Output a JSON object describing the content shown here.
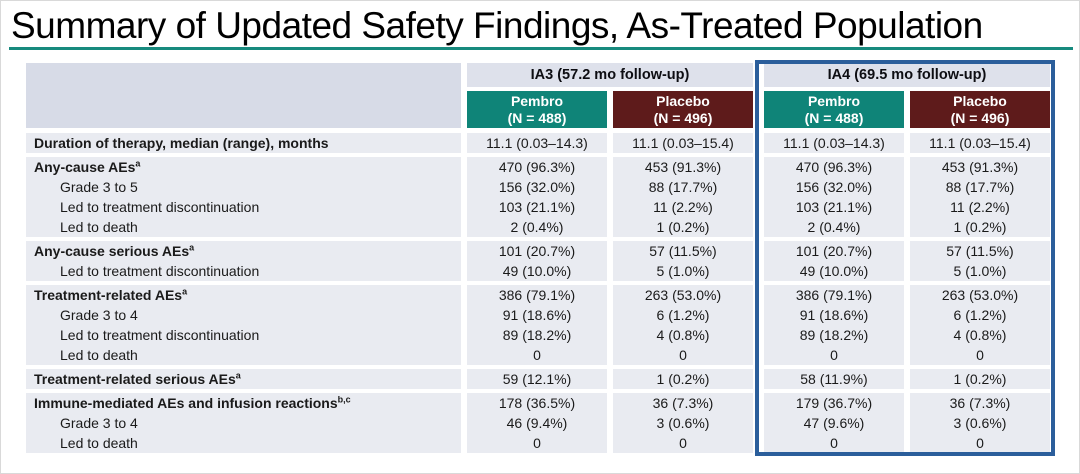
{
  "title": "Summary of Updated Safety Findings, As-Treated Population",
  "colors": {
    "teal": "#0f8478",
    "maroon": "#5e1b1b",
    "blue_border": "#2b5e9b",
    "accent_rule": "#178a7e",
    "group_header_bg": "#dee1eb",
    "label_header_bg": "#d7dbe7",
    "row_bg": "#e9ebf1"
  },
  "table": {
    "groups": [
      {
        "label": "IA3 (57.2 mo follow-up)",
        "highlighted": false
      },
      {
        "label": "IA4 (69.5 mo follow-up)",
        "highlighted": true
      }
    ],
    "columns": [
      {
        "arm": "Pembro",
        "n": "(N = 488)",
        "color": "teal"
      },
      {
        "arm": "Placebo",
        "n": "(N = 496)",
        "color": "maroon"
      },
      {
        "arm": "Pembro",
        "n": "(N = 488)",
        "color": "teal"
      },
      {
        "arm": "Placebo",
        "n": "(N = 496)",
        "color": "maroon"
      }
    ],
    "sections": [
      {
        "rows": [
          {
            "label": "Duration of therapy, median (range), months",
            "sup": "",
            "bold": true,
            "indent": false,
            "values": [
              "11.1 (0.03–14.3)",
              "11.1 (0.03–15.4)",
              "11.1 (0.03–14.3)",
              "11.1 (0.03–15.4)"
            ]
          }
        ]
      },
      {
        "rows": [
          {
            "label": "Any-cause AEs",
            "sup": "a",
            "bold": true,
            "indent": false,
            "values": [
              "470 (96.3%)",
              "453 (91.3%)",
              "470 (96.3%)",
              "453 (91.3%)"
            ]
          },
          {
            "label": "Grade 3 to 5",
            "sup": "",
            "bold": false,
            "indent": true,
            "values": [
              "156 (32.0%)",
              "88 (17.7%)",
              "156 (32.0%)",
              "88 (17.7%)"
            ]
          },
          {
            "label": "Led to treatment discontinuation",
            "sup": "",
            "bold": false,
            "indent": true,
            "values": [
              "103 (21.1%)",
              "11 (2.2%)",
              "103 (21.1%)",
              "11 (2.2%)"
            ]
          },
          {
            "label": "Led to death",
            "sup": "",
            "bold": false,
            "indent": true,
            "values": [
              "2 (0.4%)",
              "1 (0.2%)",
              "2 (0.4%)",
              "1 (0.2%)"
            ]
          }
        ]
      },
      {
        "rows": [
          {
            "label": "Any-cause serious AEs",
            "sup": "a",
            "bold": true,
            "indent": false,
            "values": [
              "101 (20.7%)",
              "57 (11.5%)",
              "101 (20.7%)",
              "57 (11.5%)"
            ]
          },
          {
            "label": "Led to treatment discontinuation",
            "sup": "",
            "bold": false,
            "indent": true,
            "values": [
              "49 (10.0%)",
              "5 (1.0%)",
              "49 (10.0%)",
              "5 (1.0%)"
            ]
          }
        ]
      },
      {
        "rows": [
          {
            "label": "Treatment-related AEs",
            "sup": "a",
            "bold": true,
            "indent": false,
            "values": [
              "386 (79.1%)",
              "263 (53.0%)",
              "386 (79.1%)",
              "263 (53.0%)"
            ]
          },
          {
            "label": "Grade 3 to 4",
            "sup": "",
            "bold": false,
            "indent": true,
            "values": [
              "91 (18.6%)",
              "6 (1.2%)",
              "91 (18.6%)",
              "6 (1.2%)"
            ]
          },
          {
            "label": "Led to treatment discontinuation",
            "sup": "",
            "bold": false,
            "indent": true,
            "values": [
              "89 (18.2%)",
              "4 (0.8%)",
              "89 (18.2%)",
              "4 (0.8%)"
            ]
          },
          {
            "label": "Led to death",
            "sup": "",
            "bold": false,
            "indent": true,
            "values": [
              "0",
              "0",
              "0",
              "0"
            ]
          }
        ]
      },
      {
        "rows": [
          {
            "label": "Treatment-related serious AEs",
            "sup": "a",
            "bold": true,
            "indent": false,
            "values": [
              "59 (12.1%)",
              "1 (0.2%)",
              "58 (11.9%)",
              "1 (0.2%)"
            ]
          }
        ]
      },
      {
        "rows": [
          {
            "label": "Immune-mediated AEs and infusion reactions",
            "sup": "b,c",
            "bold": true,
            "indent": false,
            "values": [
              "178 (36.5%)",
              "36 (7.3%)",
              "179 (36.7%)",
              "36 (7.3%)"
            ]
          },
          {
            "label": "Grade 3 to 4",
            "sup": "",
            "bold": false,
            "indent": true,
            "values": [
              "46 (9.4%)",
              "3 (0.6%)",
              "47 (9.6%)",
              "3 (0.6%)"
            ]
          },
          {
            "label": "Led to death",
            "sup": "",
            "bold": false,
            "indent": true,
            "values": [
              "0",
              "0",
              "0",
              "0"
            ]
          }
        ]
      }
    ]
  }
}
